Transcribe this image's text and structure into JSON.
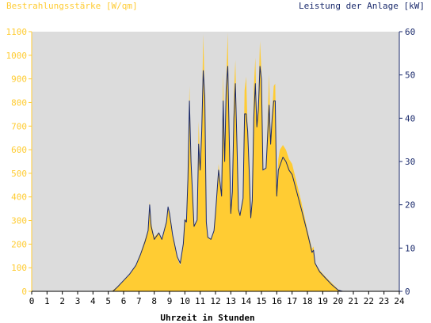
{
  "chart_data": {
    "type": "area",
    "left_axis_title": "Bestrahlungsstärke [W/qm]",
    "right_axis_title": "Leistung der Anlage [kW]",
    "xlabel": "Uhrzeit in Stunden",
    "x_ticks": [
      "0",
      "1",
      "2",
      "3",
      "4",
      "5",
      "6",
      "7",
      "8",
      "9",
      "10",
      "11",
      "12",
      "13",
      "14",
      "15",
      "16",
      "17",
      "18",
      "19",
      "20",
      "21",
      "22",
      "23",
      "24"
    ],
    "y_left_ticks": [
      "0",
      "100",
      "200",
      "300",
      "400",
      "500",
      "600",
      "700",
      "800",
      "900",
      "1000",
      "1100"
    ],
    "y_right_ticks": [
      "0",
      "10",
      "20",
      "30",
      "40",
      "50",
      "60"
    ],
    "xlim": [
      0,
      24
    ],
    "ylim_left": [
      0,
      1100
    ],
    "ylim_right": [
      0,
      60
    ],
    "grid": false,
    "colors": {
      "plot_background": "#dcdcdc",
      "irradiance_fill": "#ffcc33",
      "power_line": "#1a2a6c",
      "left_axis_text": "#ffcc33",
      "right_axis_text": "#1a2a6c"
    },
    "series": [
      {
        "axis": "left",
        "style": "area",
        "color": "#ffcc33",
        "points": [
          [
            0,
            0
          ],
          [
            5.2,
            0
          ],
          [
            5.5,
            15
          ],
          [
            6.0,
            45
          ],
          [
            6.4,
            70
          ],
          [
            6.8,
            110
          ],
          [
            7.1,
            160
          ],
          [
            7.4,
            220
          ],
          [
            7.6,
            260
          ],
          [
            7.7,
            380
          ],
          [
            7.8,
            290
          ],
          [
            8.0,
            230
          ],
          [
            8.3,
            250
          ],
          [
            8.5,
            220
          ],
          [
            8.8,
            300
          ],
          [
            8.9,
            360
          ],
          [
            9.0,
            330
          ],
          [
            9.2,
            240
          ],
          [
            9.5,
            140
          ],
          [
            9.7,
            110
          ],
          [
            9.9,
            200
          ],
          [
            10.0,
            310
          ],
          [
            10.1,
            300
          ],
          [
            10.2,
            480
          ],
          [
            10.3,
            870
          ],
          [
            10.4,
            560
          ],
          [
            10.6,
            280
          ],
          [
            10.8,
            300
          ],
          [
            10.9,
            720
          ],
          [
            11.0,
            520
          ],
          [
            11.1,
            700
          ],
          [
            11.2,
            1090
          ],
          [
            11.3,
            830
          ],
          [
            11.4,
            290
          ],
          [
            11.5,
            230
          ],
          [
            11.7,
            220
          ],
          [
            11.9,
            260
          ],
          [
            12.0,
            330
          ],
          [
            12.2,
            540
          ],
          [
            12.4,
            410
          ],
          [
            12.5,
            930
          ],
          [
            12.6,
            560
          ],
          [
            12.7,
            890
          ],
          [
            12.8,
            1095
          ],
          [
            12.9,
            650
          ],
          [
            13.0,
            340
          ],
          [
            13.1,
            420
          ],
          [
            13.2,
            840
          ],
          [
            13.3,
            980
          ],
          [
            13.4,
            630
          ],
          [
            13.5,
            350
          ],
          [
            13.6,
            320
          ],
          [
            13.8,
            400
          ],
          [
            13.9,
            850
          ],
          [
            14.0,
            910
          ],
          [
            14.1,
            680
          ],
          [
            14.2,
            520
          ],
          [
            14.3,
            310
          ],
          [
            14.4,
            390
          ],
          [
            14.5,
            860
          ],
          [
            14.6,
            990
          ],
          [
            14.7,
            720
          ],
          [
            14.8,
            810
          ],
          [
            14.9,
            1060
          ],
          [
            15.0,
            930
          ],
          [
            15.1,
            510
          ],
          [
            15.3,
            520
          ],
          [
            15.5,
            920
          ],
          [
            15.6,
            620
          ],
          [
            15.7,
            760
          ],
          [
            15.8,
            870
          ],
          [
            15.9,
            880
          ],
          [
            16.0,
            400
          ],
          [
            16.1,
            560
          ],
          [
            16.2,
            600
          ],
          [
            16.4,
            620
          ],
          [
            16.6,
            600
          ],
          [
            16.8,
            560
          ],
          [
            17.0,
            540
          ],
          [
            17.3,
            460
          ],
          [
            17.6,
            380
          ],
          [
            18.0,
            260
          ],
          [
            18.3,
            180
          ],
          [
            18.4,
            190
          ],
          [
            18.5,
            120
          ],
          [
            18.8,
            90
          ],
          [
            19.2,
            60
          ],
          [
            19.6,
            35
          ],
          [
            20.0,
            8
          ],
          [
            20.3,
            0
          ],
          [
            24,
            0
          ]
        ]
      },
      {
        "axis": "right",
        "style": "line",
        "color": "#1a2a6c",
        "points": [
          [
            0,
            0
          ],
          [
            5.3,
            0
          ],
          [
            5.6,
            1
          ],
          [
            6.0,
            2.5
          ],
          [
            6.4,
            4
          ],
          [
            6.8,
            6
          ],
          [
            7.1,
            8.5
          ],
          [
            7.4,
            11.5
          ],
          [
            7.6,
            14
          ],
          [
            7.7,
            20
          ],
          [
            7.8,
            15
          ],
          [
            8.0,
            12
          ],
          [
            8.3,
            13.5
          ],
          [
            8.5,
            12
          ],
          [
            8.8,
            16
          ],
          [
            8.9,
            19.5
          ],
          [
            9.0,
            18
          ],
          [
            9.2,
            13
          ],
          [
            9.5,
            8
          ],
          [
            9.7,
            6.5
          ],
          [
            9.9,
            11
          ],
          [
            10.0,
            16.5
          ],
          [
            10.1,
            16
          ],
          [
            10.2,
            26
          ],
          [
            10.3,
            44
          ],
          [
            10.4,
            30
          ],
          [
            10.6,
            15
          ],
          [
            10.8,
            16.5
          ],
          [
            10.9,
            34
          ],
          [
            11.0,
            28
          ],
          [
            11.1,
            37
          ],
          [
            11.2,
            51
          ],
          [
            11.3,
            45
          ],
          [
            11.4,
            16
          ],
          [
            11.5,
            12.5
          ],
          [
            11.7,
            12
          ],
          [
            11.9,
            14
          ],
          [
            12.0,
            18
          ],
          [
            12.2,
            28
          ],
          [
            12.4,
            22
          ],
          [
            12.5,
            44
          ],
          [
            12.6,
            30
          ],
          [
            12.7,
            47
          ],
          [
            12.8,
            52
          ],
          [
            12.9,
            35
          ],
          [
            13.0,
            18
          ],
          [
            13.1,
            23
          ],
          [
            13.2,
            40
          ],
          [
            13.3,
            48
          ],
          [
            13.4,
            34
          ],
          [
            13.5,
            19
          ],
          [
            13.6,
            17.5
          ],
          [
            13.8,
            21.5
          ],
          [
            13.9,
            41
          ],
          [
            14.0,
            41
          ],
          [
            14.1,
            37
          ],
          [
            14.2,
            28
          ],
          [
            14.3,
            17
          ],
          [
            14.4,
            21
          ],
          [
            14.5,
            40
          ],
          [
            14.6,
            48
          ],
          [
            14.7,
            38
          ],
          [
            14.8,
            42
          ],
          [
            14.9,
            52
          ],
          [
            15.0,
            49
          ],
          [
            15.1,
            28
          ],
          [
            15.3,
            28.5
          ],
          [
            15.5,
            43
          ],
          [
            15.6,
            34
          ],
          [
            15.7,
            40
          ],
          [
            15.8,
            44
          ],
          [
            15.9,
            44
          ],
          [
            16.0,
            22
          ],
          [
            16.1,
            28
          ],
          [
            16.2,
            29
          ],
          [
            16.4,
            31
          ],
          [
            16.6,
            30
          ],
          [
            16.8,
            28
          ],
          [
            17.0,
            27
          ],
          [
            17.3,
            23
          ],
          [
            17.6,
            19
          ],
          [
            18.0,
            13.5
          ],
          [
            18.3,
            9
          ],
          [
            18.4,
            9.5
          ],
          [
            18.5,
            6.5
          ],
          [
            18.8,
            4.5
          ],
          [
            19.2,
            3
          ],
          [
            19.6,
            1.5
          ],
          [
            20.0,
            0.3
          ],
          [
            20.3,
            0
          ],
          [
            24,
            0
          ]
        ]
      }
    ]
  }
}
